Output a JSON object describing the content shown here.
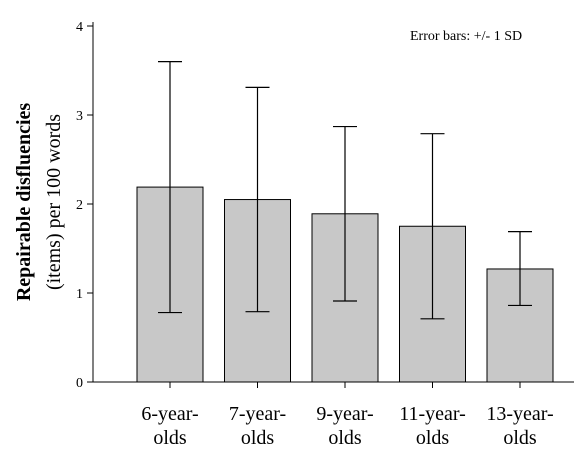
{
  "chart_data": {
    "type": "bar",
    "categories": [
      [
        "6-year-",
        "olds"
      ],
      [
        "7-year-",
        "olds"
      ],
      [
        "9-year-",
        "olds"
      ],
      [
        "11-year-",
        "olds"
      ],
      [
        "13-year-",
        "olds"
      ]
    ],
    "values": [
      2.19,
      2.05,
      1.89,
      1.75,
      1.27
    ],
    "error_bars": {
      "type": "+/- 1 SD",
      "upper": [
        3.6,
        3.31,
        2.87,
        2.79,
        1.69
      ],
      "lower": [
        0.78,
        0.79,
        0.91,
        0.71,
        0.86
      ]
    },
    "ylabel_line1": "Repairable disfluencies",
    "ylabel_line2": "(items) per 100 words",
    "ylim": [
      0,
      4
    ],
    "yticks": [
      "0",
      "1",
      "2",
      "3",
      "4"
    ],
    "annotation": "Error bars: +/- 1 SD",
    "grid": false,
    "bar_color": "#c8c8c8"
  }
}
